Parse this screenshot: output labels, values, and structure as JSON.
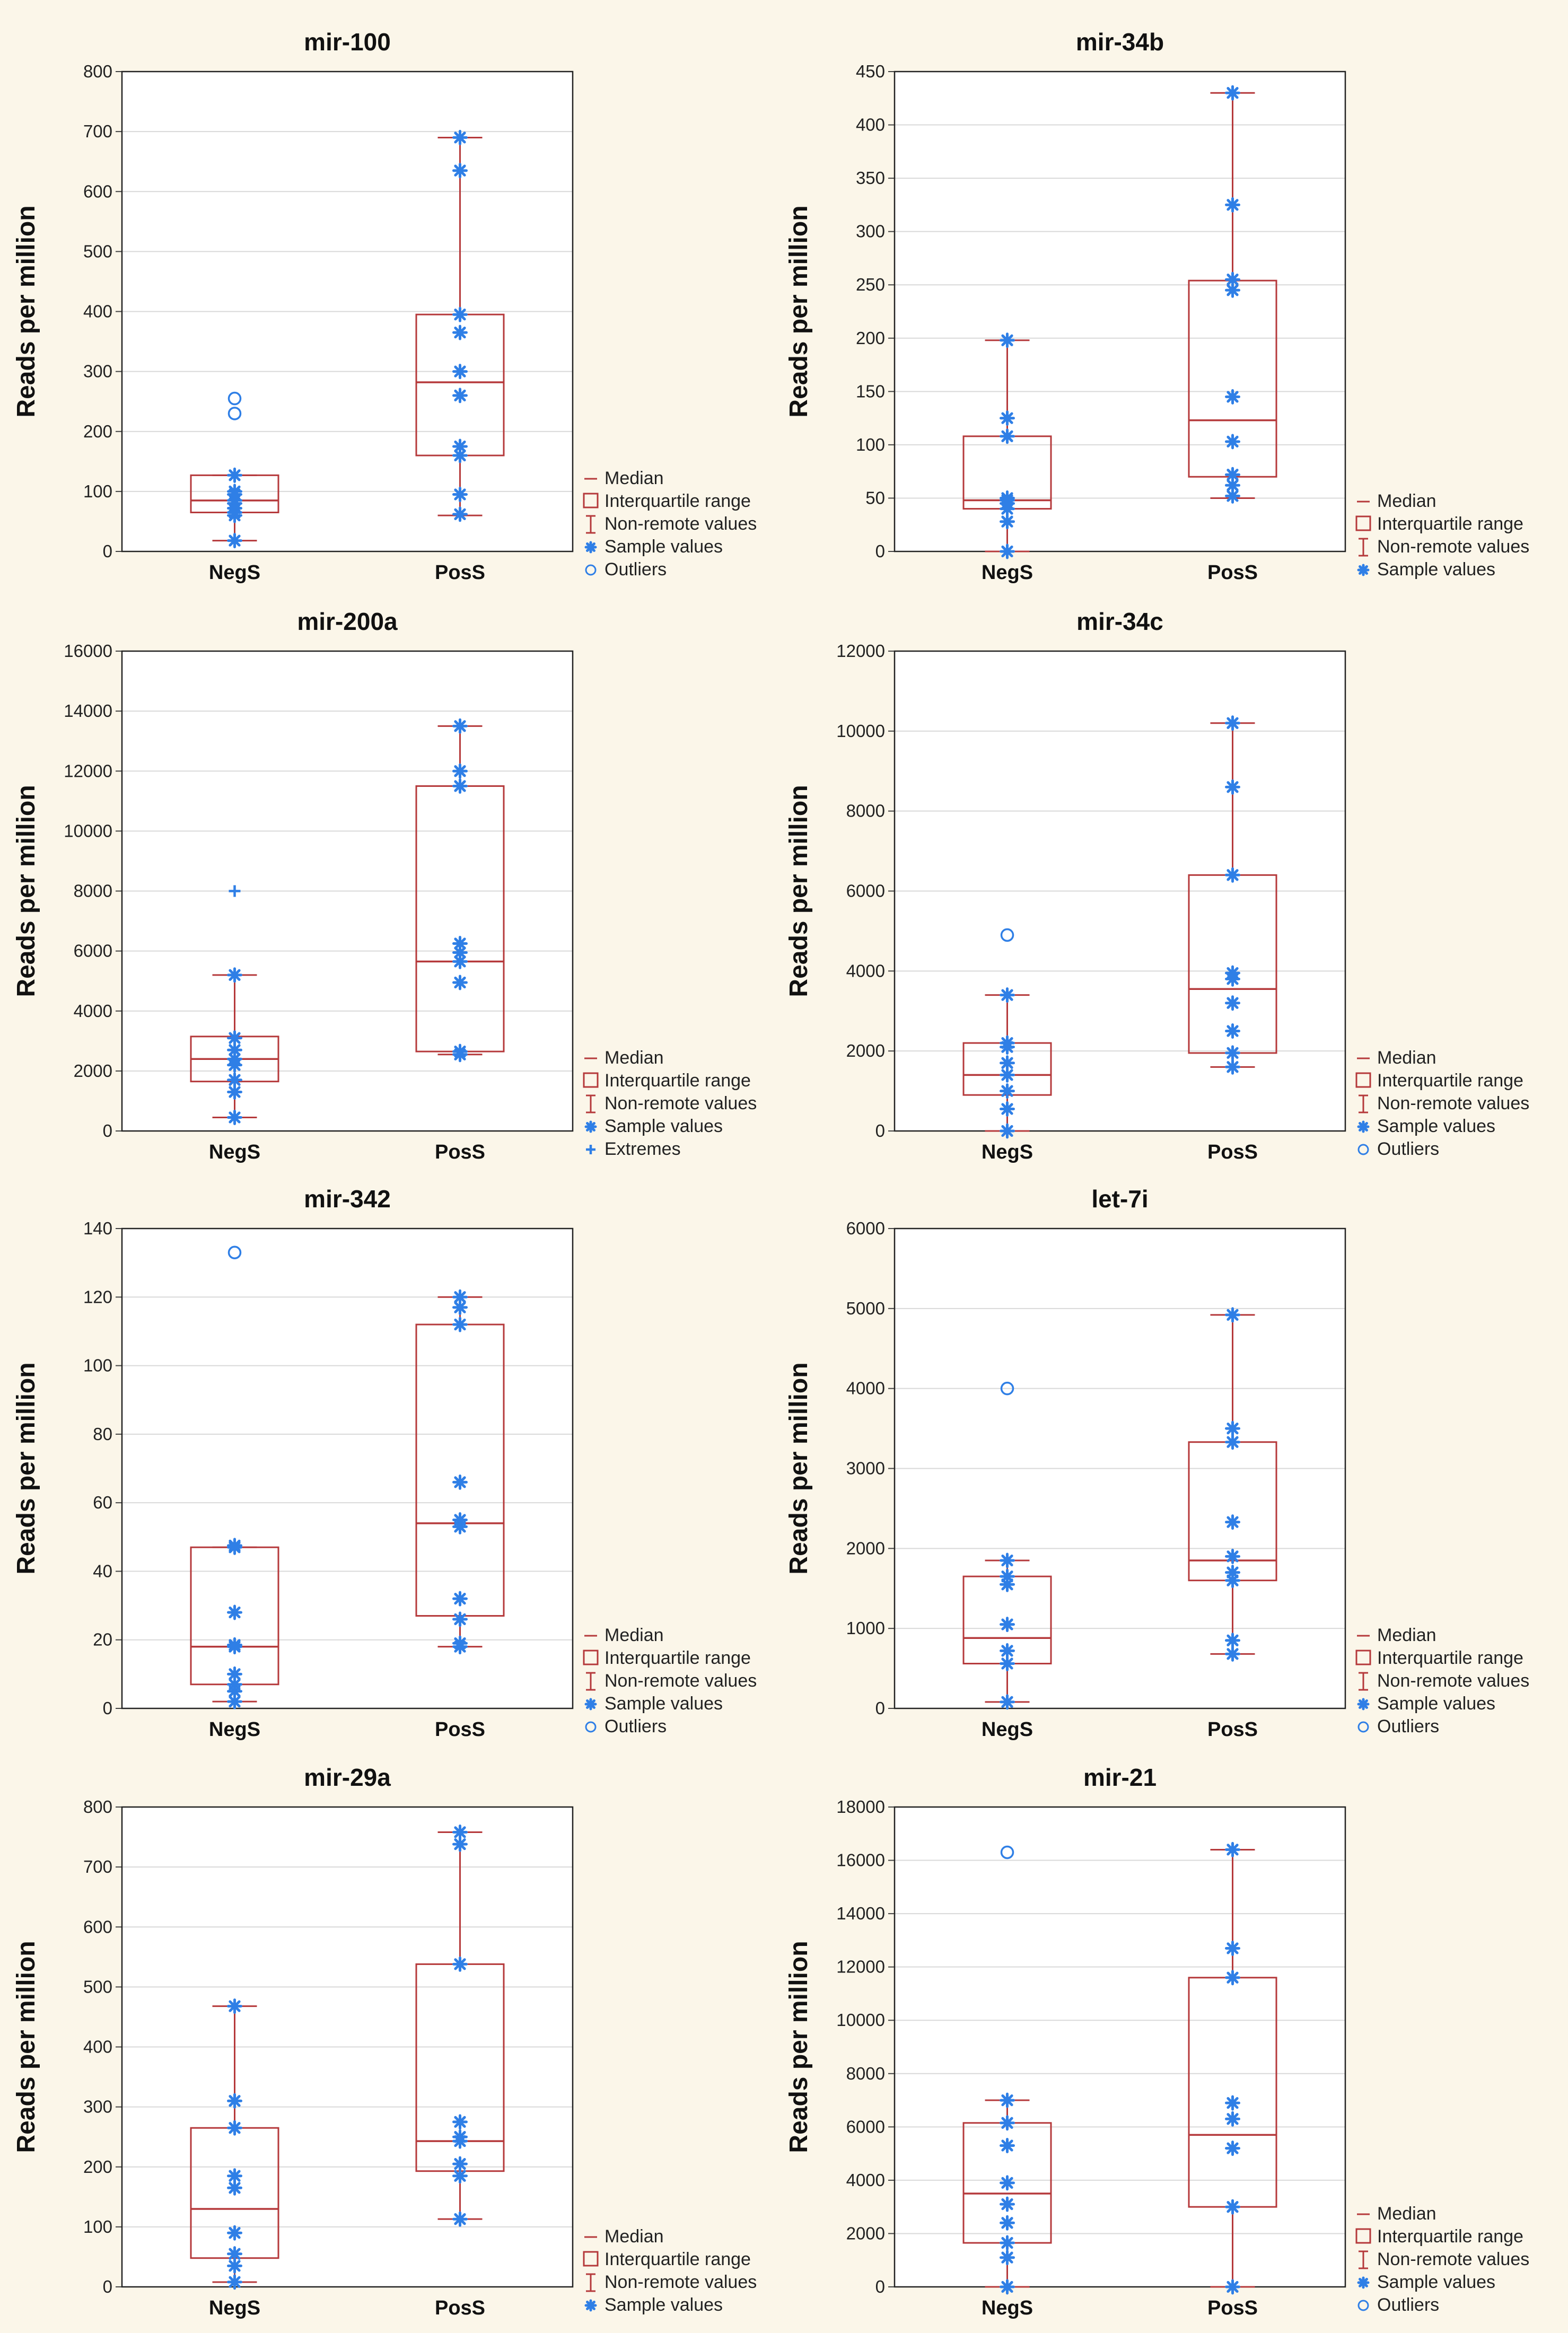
{
  "figure": {
    "ylabel": "Reads per million",
    "colors": {
      "box": "#b5393b",
      "point": "#2f7fe6",
      "grid": "#d9d9d9",
      "panel": "#ffffff"
    }
  },
  "chart_data": [
    {
      "type": "boxplot",
      "title": "mir-100",
      "ylabel": "Reads per million",
      "ylim": [
        0,
        800
      ],
      "yticks": [
        0,
        100,
        200,
        300,
        400,
        500,
        600,
        700,
        800
      ],
      "categories": [
        "NegS",
        "PosS"
      ],
      "boxes": [
        {
          "median": 85,
          "q1": 65,
          "q3": 127,
          "whisker_low": 18,
          "whisker_high": 127,
          "samples": [
            18,
            60,
            65,
            72,
            80,
            85,
            95,
            100,
            127
          ],
          "outliers": [
            230,
            255
          ],
          "extremes": []
        },
        {
          "median": 282,
          "q1": 160,
          "q3": 395,
          "whisker_low": 60,
          "whisker_high": 690,
          "samples": [
            62,
            95,
            160,
            175,
            260,
            300,
            365,
            395,
            635,
            690
          ],
          "outliers": [],
          "extremes": []
        }
      ],
      "legend": [
        "Median",
        "Interquartile range",
        "Non-remote values",
        "Sample values",
        "Outliers"
      ]
    },
    {
      "type": "boxplot",
      "title": "mir-34b",
      "ylabel": "Reads per million",
      "ylim": [
        0,
        450
      ],
      "yticks": [
        0,
        50,
        100,
        150,
        200,
        250,
        300,
        350,
        400,
        450
      ],
      "categories": [
        "NegS",
        "PosS"
      ],
      "boxes": [
        {
          "median": 48,
          "q1": 40,
          "q3": 108,
          "whisker_low": 0,
          "whisker_high": 198,
          "samples": [
            0,
            28,
            40,
            45,
            48,
            50,
            108,
            125,
            198
          ],
          "outliers": [],
          "extremes": []
        },
        {
          "median": 123,
          "q1": 70,
          "q3": 254,
          "whisker_low": 50,
          "whisker_high": 430,
          "samples": [
            52,
            62,
            72,
            103,
            145,
            245,
            255,
            325,
            430
          ],
          "outliers": [],
          "extremes": []
        }
      ],
      "legend": [
        "Median",
        "Interquartile range",
        "Non-remote values",
        "Sample values"
      ]
    },
    {
      "type": "boxplot",
      "title": "mir-200a",
      "ylabel": "Reads per million",
      "ylim": [
        0,
        16000
      ],
      "yticks": [
        0,
        2000,
        4000,
        6000,
        8000,
        10000,
        12000,
        14000,
        16000
      ],
      "categories": [
        "NegS",
        "PosS"
      ],
      "boxes": [
        {
          "median": 2400,
          "q1": 1650,
          "q3": 3150,
          "whisker_low": 450,
          "whisker_high": 5200,
          "samples": [
            450,
            1300,
            1700,
            2200,
            2400,
            2700,
            3100,
            5200
          ],
          "outliers": [],
          "extremes": [
            8000
          ]
        },
        {
          "median": 5650,
          "q1": 2650,
          "q3": 11500,
          "whisker_low": 2550,
          "whisker_high": 13500,
          "samples": [
            2550,
            2650,
            4950,
            5650,
            5950,
            6250,
            11500,
            12000,
            13500
          ],
          "outliers": [],
          "extremes": []
        }
      ],
      "legend": [
        "Median",
        "Interquartile range",
        "Non-remote values",
        "Sample values",
        "Extremes"
      ]
    },
    {
      "type": "boxplot",
      "title": "mir-34c",
      "ylabel": "Reads per million",
      "ylim": [
        0,
        12000
      ],
      "yticks": [
        0,
        2000,
        4000,
        6000,
        8000,
        10000,
        12000
      ],
      "categories": [
        "NegS",
        "PosS"
      ],
      "boxes": [
        {
          "median": 1400,
          "q1": 900,
          "q3": 2200,
          "whisker_low": 0,
          "whisker_high": 3400,
          "samples": [
            0,
            550,
            1000,
            1400,
            1700,
            2100,
            2200,
            3400
          ],
          "outliers": [
            4900
          ],
          "extremes": []
        },
        {
          "median": 3550,
          "q1": 1950,
          "q3": 6400,
          "whisker_low": 1600,
          "whisker_high": 10200,
          "samples": [
            1600,
            1950,
            2500,
            3200,
            3800,
            3950,
            6400,
            8600,
            10200
          ],
          "outliers": [],
          "extremes": []
        }
      ],
      "legend": [
        "Median",
        "Interquartile range",
        "Non-remote values",
        "Sample values",
        "Outliers"
      ]
    },
    {
      "type": "boxplot",
      "title": "mir-342",
      "ylabel": "Reads per million",
      "ylim": [
        0,
        140
      ],
      "yticks": [
        0,
        20,
        40,
        60,
        80,
        100,
        120,
        140
      ],
      "categories": [
        "NegS",
        "PosS"
      ],
      "boxes": [
        {
          "median": 18,
          "q1": 7,
          "q3": 47,
          "whisker_low": 2,
          "whisker_high": 47,
          "samples": [
            2,
            5,
            7,
            10,
            18,
            18.5,
            28,
            47,
            47.5
          ],
          "outliers": [
            133
          ],
          "extremes": []
        },
        {
          "median": 54,
          "q1": 27,
          "q3": 112,
          "whisker_low": 18,
          "whisker_high": 120,
          "samples": [
            18,
            19,
            26,
            32,
            53,
            55,
            66,
            112,
            117,
            120
          ],
          "outliers": [],
          "extremes": []
        }
      ],
      "legend": [
        "Median",
        "Interquartile range",
        "Non-remote values",
        "Sample values",
        "Outliers"
      ]
    },
    {
      "type": "boxplot",
      "title": "let-7i",
      "ylabel": "Reads per million",
      "ylim": [
        0,
        6000
      ],
      "yticks": [
        0,
        1000,
        2000,
        3000,
        4000,
        5000,
        6000
      ],
      "categories": [
        "NegS",
        "PosS"
      ],
      "boxes": [
        {
          "median": 880,
          "q1": 560,
          "q3": 1650,
          "whisker_low": 80,
          "whisker_high": 1850,
          "samples": [
            80,
            560,
            720,
            1050,
            1550,
            1650,
            1850
          ],
          "outliers": [
            4000
          ],
          "extremes": []
        },
        {
          "median": 1850,
          "q1": 1600,
          "q3": 3330,
          "whisker_low": 680,
          "whisker_high": 4920,
          "samples": [
            680,
            850,
            1600,
            1700,
            1900,
            2330,
            3330,
            3500,
            4920
          ],
          "outliers": [],
          "extremes": []
        }
      ],
      "legend": [
        "Median",
        "Interquartile range",
        "Non-remote values",
        "Sample values",
        "Outliers"
      ]
    },
    {
      "type": "boxplot",
      "title": "mir-29a",
      "ylabel": "Reads per million",
      "ylim": [
        0,
        800
      ],
      "yticks": [
        0,
        100,
        200,
        300,
        400,
        500,
        600,
        700,
        800
      ],
      "categories": [
        "NegS",
        "PosS"
      ],
      "boxes": [
        {
          "median": 130,
          "q1": 48,
          "q3": 265,
          "whisker_low": 8,
          "whisker_high": 468,
          "samples": [
            8,
            35,
            55,
            90,
            165,
            185,
            265,
            310,
            468
          ],
          "outliers": [],
          "extremes": []
        },
        {
          "median": 243,
          "q1": 193,
          "q3": 538,
          "whisker_low": 113,
          "whisker_high": 758,
          "samples": [
            113,
            185,
            205,
            243,
            250,
            275,
            538,
            738,
            758
          ],
          "outliers": [],
          "extremes": []
        }
      ],
      "legend": [
        "Median",
        "Interquartile range",
        "Non-remote values",
        "Sample values"
      ]
    },
    {
      "type": "boxplot",
      "title": "mir-21",
      "ylabel": "Reads per million",
      "ylim": [
        0,
        18000
      ],
      "yticks": [
        0,
        2000,
        4000,
        6000,
        8000,
        10000,
        12000,
        14000,
        16000,
        18000
      ],
      "categories": [
        "NegS",
        "PosS"
      ],
      "boxes": [
        {
          "median": 3500,
          "q1": 1650,
          "q3": 6150,
          "whisker_low": 0,
          "whisker_high": 7000,
          "samples": [
            0,
            1100,
            1650,
            2400,
            3100,
            3900,
            5300,
            6150,
            7000
          ],
          "outliers": [
            16300
          ],
          "extremes": []
        },
        {
          "median": 5700,
          "q1": 3000,
          "q3": 11600,
          "whisker_low": 0,
          "whisker_high": 16400,
          "samples": [
            0,
            3000,
            5200,
            6300,
            6900,
            11600,
            12700,
            16400
          ],
          "outliers": [],
          "extremes": []
        }
      ],
      "legend": [
        "Median",
        "Interquartile range",
        "Non-remote values",
        "Sample values",
        "Outliers"
      ]
    }
  ]
}
